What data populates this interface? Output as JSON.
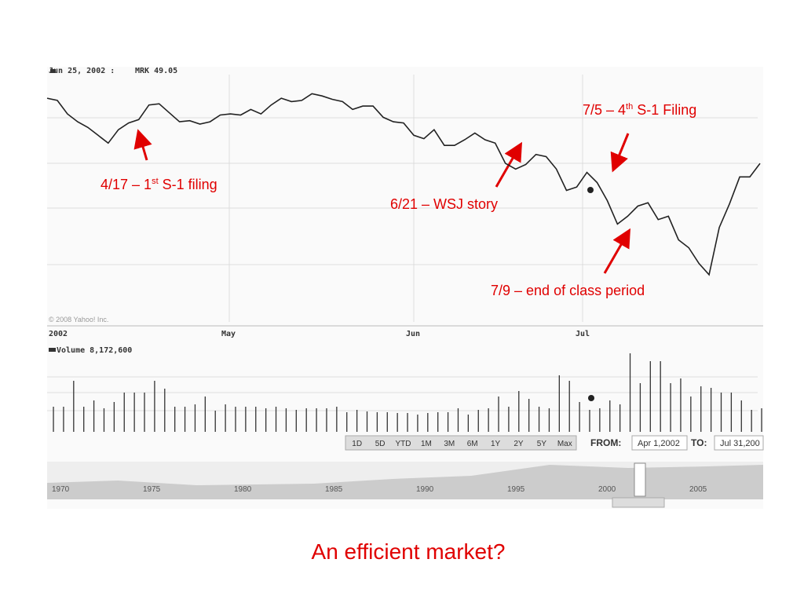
{
  "chart_data": {
    "type": "line",
    "header_date": "Jun 25, 2002 :",
    "header_quote": "MRK 49.05",
    "copyright": "© 2008 Yahoo! Inc.",
    "month_labels": [
      "2002",
      "May",
      "Jun",
      "Jul"
    ],
    "volume_label": "Volume 8,172,600",
    "color": "#222222",
    "ylim": [
      38,
      60
    ],
    "values": [
      57.9,
      57.7,
      56.5,
      55.8,
      55.3,
      54.6,
      53.9,
      55.1,
      55.7,
      56.0,
      57.3,
      57.4,
      56.6,
      55.8,
      55.9,
      55.6,
      55.8,
      56.4,
      56.5,
      56.4,
      56.9,
      56.5,
      57.3,
      57.9,
      57.6,
      57.7,
      58.3,
      58.1,
      57.8,
      57.6,
      56.9,
      57.2,
      57.2,
      56.2,
      55.8,
      55.7,
      54.6,
      54.3,
      55.1,
      53.7,
      53.7,
      54.2,
      54.8,
      54.2,
      53.9,
      52.1,
      51.6,
      52.0,
      52.9,
      52.7,
      51.6,
      49.7,
      50.0,
      51.3,
      50.4,
      48.8,
      46.7,
      47.4,
      48.3,
      48.6,
      47.1,
      47.4,
      45.3,
      44.6,
      43.2,
      42.2,
      46.4,
      48.5,
      50.9,
      50.9,
      52.1
    ],
    "y2lim": [
      0,
      19000000
    ],
    "volume_values": [
      6400000,
      6400000,
      13000000,
      6400000,
      8000000,
      6000000,
      7600000,
      10000000,
      10000000,
      10000000,
      13000000,
      11000000,
      6400000,
      6400000,
      7000000,
      9000000,
      5400000,
      7000000,
      6400000,
      6400000,
      6400000,
      6000000,
      6400000,
      6000000,
      5600000,
      6000000,
      6000000,
      6000000,
      6400000,
      5000000,
      5600000,
      5200000,
      5000000,
      5000000,
      4800000,
      4800000,
      4400000,
      4800000,
      5000000,
      5000000,
      6000000,
      4400000,
      5600000,
      6000000,
      9000000,
      6400000,
      10400000,
      8400000,
      6400000,
      6000000,
      14400000,
      13000000,
      7600000,
      5600000,
      6000000,
      8000000,
      7000000,
      20000000,
      12400000,
      18000000,
      18000000,
      12400000,
      13600000,
      9000000,
      11600000,
      11200000,
      10000000,
      10000000,
      8000000,
      5600000,
      6000000
    ],
    "range_buttons": [
      "1D",
      "5D",
      "YTD",
      "1M",
      "3M",
      "6M",
      "1Y",
      "2Y",
      "5Y",
      "Max"
    ],
    "from_label": "FROM:",
    "from_value": "Apr 1,2002",
    "to_label": "TO:",
    "to_value": "Jul 31,200",
    "timeline_years": [
      "1970",
      "1975",
      "1980",
      "1985",
      "1990",
      "1995",
      "2000",
      "2005"
    ],
    "annotations": [
      {
        "text": "4/17 – 1",
        "sup": "st",
        "rest": " S-1 filing"
      },
      {
        "text": "6/21 – WSJ story"
      },
      {
        "text": "7/5 – 4",
        "sup": "th",
        "rest": " S-1 Filing"
      },
      {
        "text": "7/9 – end of class period"
      }
    ],
    "title": "An efficient market?"
  }
}
